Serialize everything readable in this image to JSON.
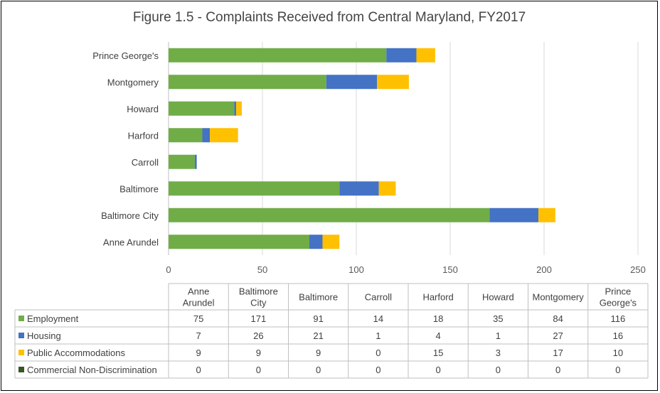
{
  "chart_data": {
    "type": "bar",
    "orientation": "horizontal",
    "stacked": true,
    "title": "Figure 1.5 - Complaints Received from Central Maryland, FY2017",
    "categories": [
      "Anne Arundel",
      "Baltimore City",
      "Baltimore",
      "Carroll",
      "Harford",
      "Howard",
      "Montgomery",
      "Prince George's"
    ],
    "table_headers": [
      "Anne\nArundel",
      "Baltimore\nCity",
      "Baltimore",
      "Carroll",
      "Harford",
      "Howard",
      "Montgomery",
      "Prince\nGeorge's"
    ],
    "series": [
      {
        "name": "Employment",
        "color": "#70ad47",
        "values": [
          75,
          171,
          91,
          14,
          18,
          35,
          84,
          116
        ]
      },
      {
        "name": "Housing",
        "color": "#4472c4",
        "values": [
          7,
          26,
          21,
          1,
          4,
          1,
          27,
          16
        ]
      },
      {
        "name": "Public Accommodations",
        "color": "#ffc000",
        "values": [
          9,
          9,
          9,
          0,
          15,
          3,
          17,
          10
        ]
      },
      {
        "name": "Commercial Non-Discrimination",
        "color": "#375623",
        "values": [
          0,
          0,
          0,
          0,
          0,
          0,
          0,
          0
        ]
      }
    ],
    "xlim": [
      0,
      250
    ],
    "xticks": [
      0,
      50,
      100,
      150,
      200,
      250
    ],
    "grid": true,
    "legend": "data-table"
  }
}
